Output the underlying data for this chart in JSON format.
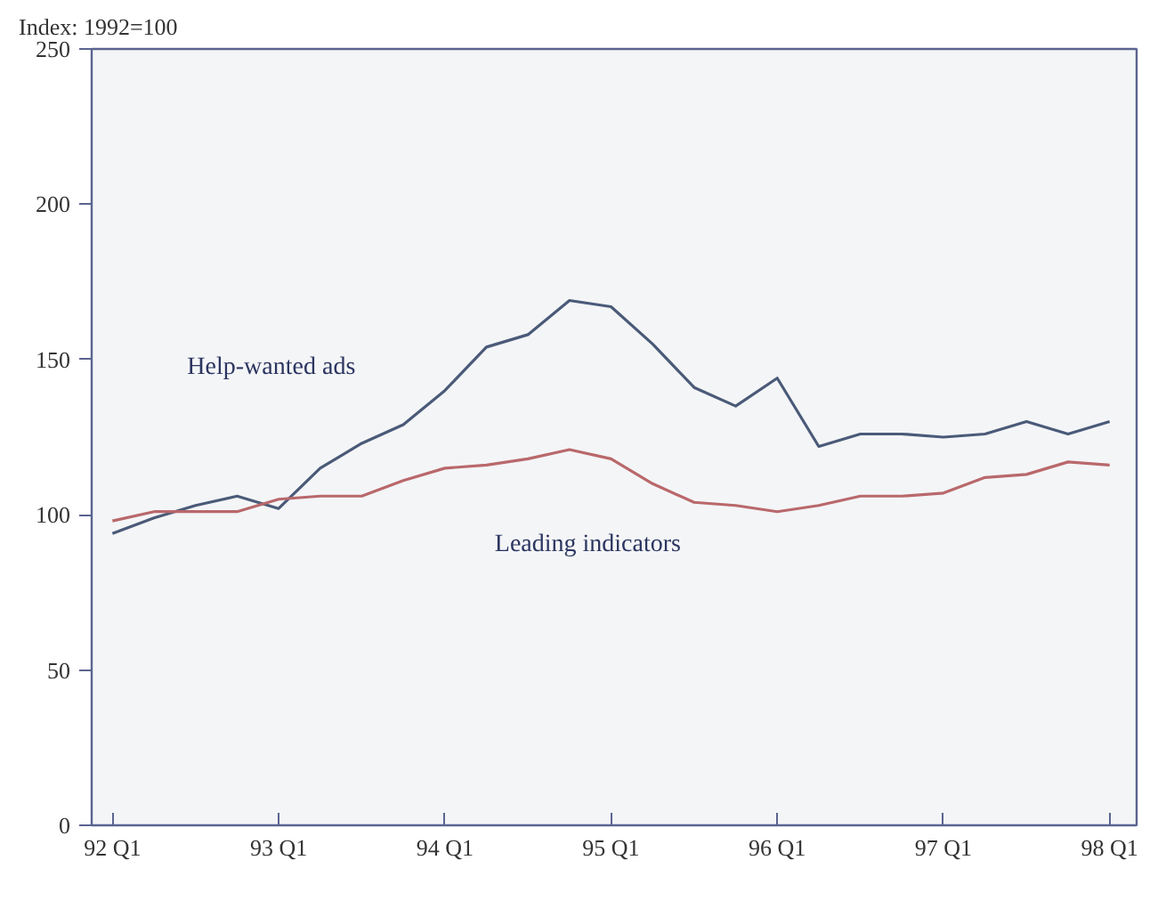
{
  "chart_data": {
    "type": "line",
    "ylabel": "Index: 1992=100",
    "categories": [
      "92 Q1",
      null,
      null,
      null,
      "93 Q1",
      null,
      null,
      null,
      "94 Q1",
      null,
      null,
      null,
      "95 Q1",
      null,
      null,
      null,
      "96 Q1",
      null,
      null,
      null,
      "97 Q1",
      null,
      null,
      null,
      "98 Q1"
    ],
    "ylim": [
      0,
      250
    ],
    "yticks": [
      0,
      50,
      100,
      150,
      200,
      250
    ],
    "grid": false,
    "marker": "none",
    "line_style": "solid",
    "series": [
      {
        "name": "Help-wanted ads",
        "color": "#4a5a78",
        "values": [
          94,
          99,
          103,
          106,
          102,
          115,
          123,
          129,
          140,
          154,
          158,
          169,
          167,
          155,
          141,
          135,
          144,
          122,
          126,
          126,
          125,
          126,
          130,
          126,
          130
        ]
      },
      {
        "name": "Leading indicators",
        "color": "#b9686b",
        "values": [
          98,
          101,
          101,
          101,
          105,
          106,
          106,
          111,
          115,
          116,
          118,
          121,
          118,
          110,
          104,
          103,
          101,
          103,
          106,
          106,
          107,
          112,
          113,
          117,
          116
        ]
      }
    ]
  }
}
